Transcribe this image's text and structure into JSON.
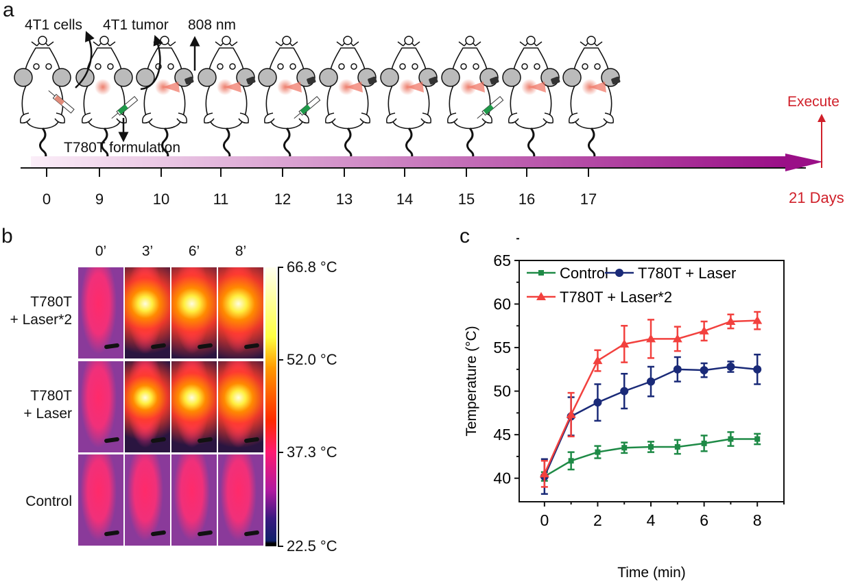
{
  "panel_a": {
    "label": "a",
    "annotations": {
      "cells": "4T1 cells",
      "tumor": "4T1 tumor",
      "laser": "808 nm",
      "formulation": "T780T formulation"
    },
    "timeline_ticks": [
      "0",
      "9",
      "10",
      "11",
      "12",
      "13",
      "14",
      "15",
      "16",
      "17"
    ],
    "end_label": "21 Days",
    "execute_label": "Execute",
    "colors": {
      "timeline_start": "#fbeef8",
      "timeline_end": "#9a0f87",
      "execute": "#d0202a",
      "formulation_syringe": "#1f9a4a",
      "cells_syringe": "#e08b7a"
    }
  },
  "panel_b": {
    "label": "b",
    "time_headers": [
      "0’",
      "3’",
      "6’",
      "8’"
    ],
    "rows": [
      {
        "label_line1": "T780T",
        "label_line2": "+ Laser*2",
        "hotspot": [
          0,
          0.75,
          0.9,
          1.0
        ]
      },
      {
        "label_line1": "T780T",
        "label_line2": "+ Laser",
        "hotspot": [
          0,
          0.55,
          0.7,
          0.75
        ]
      },
      {
        "label_line1": "Control",
        "label_line2": "",
        "hotspot": [
          0,
          0,
          0,
          0
        ]
      }
    ],
    "colorbar_labels": [
      "66.8 °C",
      "52.0 °C",
      "37.3 °C",
      "22.5 °C"
    ]
  },
  "panel_c_label": "c",
  "chart_data": {
    "type": "line",
    "xlabel": "Time (min)",
    "ylabel": "Temperature (°C)",
    "xlim": [
      -0.95,
      9
    ],
    "ylim": [
      37.3,
      65
    ],
    "xticks": [
      0,
      2,
      4,
      6,
      8
    ],
    "yticks": [
      40,
      45,
      50,
      55,
      60,
      65
    ],
    "legend_placement": "top-left",
    "grid": false,
    "x": [
      0,
      1,
      2,
      3,
      4,
      5,
      6,
      7,
      8
    ],
    "series": [
      {
        "name": "Control",
        "color": "#1e8a46",
        "marker": "square",
        "values": [
          40.2,
          42.0,
          43.0,
          43.5,
          43.6,
          43.6,
          44.0,
          44.5,
          44.5
        ],
        "errors": [
          0.5,
          1.0,
          0.7,
          0.6,
          0.6,
          0.8,
          0.9,
          0.8,
          0.6
        ]
      },
      {
        "name": "T780T + Laser",
        "color": "#1a2a78",
        "marker": "circle",
        "values": [
          40.2,
          47.1,
          48.7,
          50.0,
          51.1,
          52.5,
          52.4,
          52.8,
          52.5
        ],
        "errors": [
          2.0,
          2.2,
          2.1,
          2.0,
          1.7,
          1.4,
          0.8,
          0.6,
          1.7
        ]
      },
      {
        "name": "T780T + Laser*2",
        "color": "#f2413e",
        "marker": "triangle",
        "values": [
          40.5,
          47.3,
          53.5,
          55.4,
          56.0,
          56.0,
          56.9,
          58.0,
          58.1
        ],
        "errors": [
          1.5,
          2.5,
          1.2,
          2.1,
          2.2,
          1.4,
          1.1,
          0.8,
          1.0
        ]
      }
    ]
  }
}
